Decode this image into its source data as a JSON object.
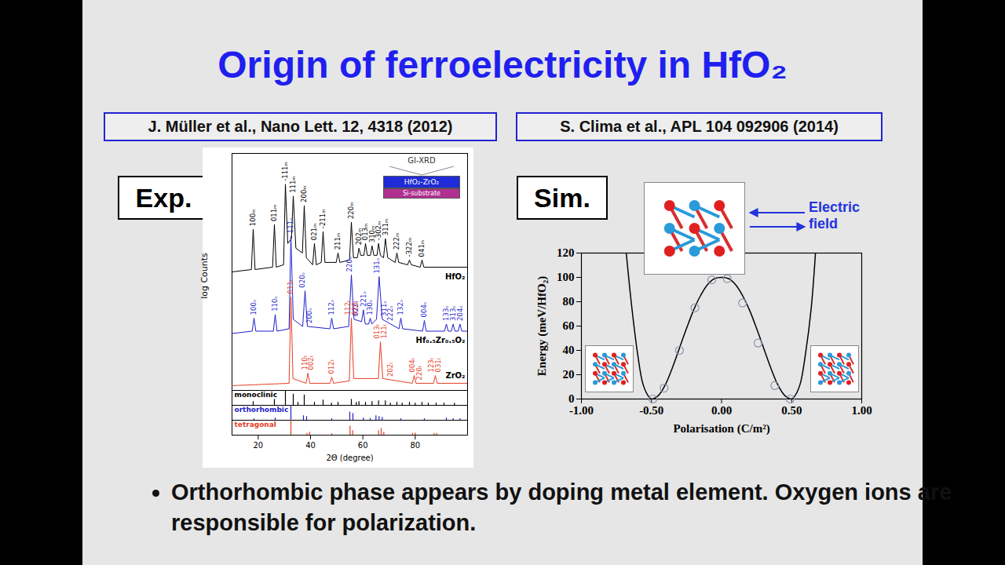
{
  "slide": {
    "title": "Origin of ferroelectricity in HfO₂",
    "references": [
      "J. Müller et al., Nano Lett. 12, 4318 (2012)",
      "S. Clima et al., APL 104 092906 (2014)"
    ],
    "panel_labels": [
      "Exp.",
      "Sim."
    ],
    "bullet": "Orthorhombic phase appears by doping metal element. Oxygen ions are responsible for polarization."
  },
  "chart_data": [
    {
      "type": "line",
      "ylabel": "log Counts",
      "xlim": [
        10,
        100
      ],
      "ylim": [
        0,
        100
      ],
      "tick_labels": false,
      "inset": {
        "title": "GI-XRD",
        "layers": [
          {
            "label": "HfO₂-ZrO₂",
            "color": "#1f2bd6"
          },
          {
            "label": "Si-substrate",
            "color": "#b0308f"
          }
        ]
      },
      "series": [
        {
          "name": "HfO₂",
          "color": "#000000",
          "x": [
            10,
            17.4,
            18.1,
            18.8,
            25.5,
            26.2,
            26.9,
            29.7,
            30.4,
            31.3,
            32.7,
            33.4,
            34.4,
            36.9,
            37.6,
            38.4,
            40.8,
            41.5,
            42.2,
            44.1,
            44.8,
            45.5,
            49.8,
            50.5,
            51.2,
            54.9,
            55.6,
            56.4,
            57.9,
            58.5,
            59.2,
            60.4,
            61.0,
            61.7,
            62.9,
            63.5,
            64.2,
            65.4,
            66.0,
            66.7,
            67.9,
            68.6,
            69.5,
            72.3,
            73.0,
            73.7,
            77.1,
            77.8,
            78.5,
            81.9,
            82.6,
            83.3,
            100
          ],
          "values": [
            50,
            51,
            68,
            51,
            52,
            70,
            52,
            53,
            87,
            62,
            64,
            82,
            60,
            58,
            78,
            56,
            53,
            62,
            53,
            54,
            67,
            54,
            54,
            58,
            54,
            55,
            71,
            56,
            56,
            60,
            57,
            57,
            62,
            57,
            57,
            61,
            57,
            57,
            62,
            57,
            56,
            64,
            56,
            54,
            58,
            54,
            53,
            55,
            53,
            52,
            55,
            52,
            52
          ],
          "annotations": [
            {
              "x": 18.1,
              "label": "100ₘ"
            },
            {
              "x": 26.2,
              "label": "011ₘ"
            },
            {
              "x": 30.4,
              "label": "-111ₘ"
            },
            {
              "x": 33.4,
              "label": "111ₘ"
            },
            {
              "x": 37.6,
              "label": "200ₘ"
            },
            {
              "x": 41.5,
              "label": "021ₘ"
            },
            {
              "x": 44.8,
              "label": "-211ₘ"
            },
            {
              "x": 50.5,
              "label": "211ₘ"
            },
            {
              "x": 55.6,
              "label": "220ₘ"
            },
            {
              "x": 58.5,
              "label": "202ₘ"
            },
            {
              "x": 61.0,
              "label": "013ₘ"
            },
            {
              "x": 63.5,
              "label": "310ₘ"
            },
            {
              "x": 66.0,
              "label": "-302ₘ"
            },
            {
              "x": 68.6,
              "label": "311ₘ"
            },
            {
              "x": 73.0,
              "label": "222ₘ"
            },
            {
              "x": 77.8,
              "label": "-322ₘ"
            },
            {
              "x": 82.6,
              "label": "041ₘ"
            }
          ]
        },
        {
          "name": "Hf₀.₅Zr₀.₅O₂",
          "color": "#1f1fcc",
          "x": [
            10,
            17.7,
            18.4,
            19.1,
            25.8,
            26.5,
            27.2,
            31.8,
            32.5,
            33.4,
            37.0,
            37.9,
            38.8,
            47.4,
            48.1,
            48.8,
            54.6,
            55.6,
            56.6,
            59.5,
            60.2,
            60.9,
            62.2,
            62.8,
            63.4,
            65.2,
            66.2,
            67.4,
            73.8,
            74.5,
            75.2,
            82.8,
            83.5,
            84.2,
            91.2,
            91.9,
            92.6,
            93.8,
            94.5,
            95.2,
            96.4,
            97.1,
            97.8,
            100
          ],
          "values": [
            24,
            25,
            30.5,
            25,
            25,
            32,
            25,
            26,
            65,
            30,
            27,
            42,
            27,
            26,
            30.5,
            26,
            27,
            48.7,
            30,
            29,
            34,
            28,
            28,
            30.5,
            28,
            30,
            48,
            30,
            26,
            30.5,
            26,
            25,
            29.5,
            25,
            25,
            28,
            25,
            25,
            28,
            25,
            25,
            28,
            25,
            25
          ],
          "annotations": [
            {
              "x": 18.4,
              "label": "100ₒ"
            },
            {
              "x": 26.5,
              "label": "110ₒ"
            },
            {
              "x": 32.5,
              "label": "111ₒ"
            },
            {
              "x": 36.9,
              "label": "020ₒ"
            },
            {
              "x": 39.5,
              "label": "200ₒ"
            },
            {
              "x": 48.1,
              "label": "112ₒ"
            },
            {
              "x": 54.8,
              "label": "220ₒ"
            },
            {
              "x": 57.4,
              "label": "022ₒ"
            },
            {
              "x": 60.2,
              "label": "221ₒ"
            },
            {
              "x": 62.8,
              "label": "130ₒ"
            },
            {
              "x": 65.4,
              "label": "131ₒ"
            },
            {
              "x": 68.0,
              "label": "311ₒ"
            },
            {
              "x": 70.6,
              "label": "222ₒ"
            },
            {
              "x": 74.5,
              "label": "132ₒ"
            },
            {
              "x": 83.5,
              "label": "004ₒ"
            },
            {
              "x": 91.9,
              "label": "133ₒ"
            },
            {
              "x": 94.5,
              "label": "313ₒ"
            },
            {
              "x": 97.1,
              "label": "204ₒ"
            }
          ]
        },
        {
          "name": "ZrO₂",
          "color": "#e53e25",
          "x": [
            10,
            31.8,
            32.5,
            33.3,
            38.3,
            39.0,
            39.7,
            47.4,
            48.1,
            48.8,
            54.8,
            55.6,
            56.5,
            65.9,
            66.7,
            67.6,
            78.9,
            79.6,
            80.3,
            87.0,
            87.7,
            88.4,
            100
          ],
          "values": [
            2,
            3,
            39.4,
            5,
            3,
            7.3,
            3,
            3,
            5.6,
            3,
            4,
            30.5,
            5,
            5,
            20.5,
            5,
            3,
            6.3,
            3,
            3,
            6.3,
            3,
            3
          ],
          "annotations": [
            {
              "x": 32.5,
              "label": "011ₜ"
            },
            {
              "x": 37.7,
              "label": "110ₜ"
            },
            {
              "x": 40.3,
              "label": "002ₜ"
            },
            {
              "x": 48.1,
              "label": "012ₜ"
            },
            {
              "x": 54.3,
              "label": "112ₜ"
            },
            {
              "x": 56.9,
              "label": "020ₜ"
            },
            {
              "x": 65.4,
              "label": "013ₜ"
            },
            {
              "x": 68.0,
              "label": "121ₜ"
            },
            {
              "x": 70.6,
              "label": "202ₜ"
            },
            {
              "x": 78.9,
              "label": "004ₜ"
            },
            {
              "x": 81.5,
              "label": "220ₜ"
            },
            {
              "x": 86.2,
              "label": "123ₜ"
            },
            {
              "x": 88.9,
              "label": "031ₜ"
            }
          ]
        }
      ]
    },
    {
      "type": "stick",
      "xlabel": "2Θ (degree)",
      "xlim": [
        10,
        100
      ],
      "xticks": [
        20,
        40,
        60,
        80
      ],
      "ylim": [
        0,
        100
      ],
      "tick_labels": "x",
      "series": [
        {
          "name": "monoclinic",
          "color": "#000000",
          "x": [
            18.1,
            26.2,
            30.4,
            33.4,
            35.2,
            37.6,
            41.5,
            44.8,
            48.0,
            50.5,
            55.6,
            57.5,
            58.5,
            61.0,
            63.5,
            66.0,
            68.6,
            70.5,
            73.0,
            75.0,
            77.8,
            80.0,
            82.6,
            85.0,
            88.0,
            91.0,
            95.0
          ],
          "values": [
            25,
            40,
            100,
            75,
            20,
            70,
            20,
            35,
            15,
            20,
            40,
            20,
            25,
            20,
            25,
            30,
            30,
            15,
            20,
            15,
            20,
            15,
            20,
            15,
            15,
            15,
            15
          ]
        },
        {
          "name": "orthorhombic",
          "color": "#1f1fcc",
          "x": [
            18.4,
            26.5,
            32.5,
            37.3,
            38.5,
            48.1,
            55.0,
            56.2,
            60.2,
            62.8,
            65.0,
            66.2,
            67.4,
            74.5,
            83.5,
            91.9,
            94.5,
            97.1
          ],
          "values": [
            10,
            15,
            100,
            30,
            25,
            10,
            55,
            45,
            15,
            12,
            30,
            25,
            20,
            10,
            10,
            15,
            12,
            10
          ]
        },
        {
          "name": "tetragonal",
          "color": "#e53e25",
          "x": [
            32.5,
            38.6,
            39.6,
            48.1,
            55.1,
            56.1,
            66.0,
            67.0,
            68.0,
            79.0,
            80.0,
            87.2,
            88.2
          ],
          "values": [
            100,
            12,
            20,
            10,
            60,
            30,
            30,
            45,
            20,
            12,
            15,
            10,
            12
          ]
        }
      ]
    },
    {
      "type": "line",
      "xlabel": "Polarisation (C/m²)",
      "ylabel": "Energy (meV/HfO₂)",
      "xlim": [
        -1,
        1
      ],
      "xticks": [
        {
          "value": -1,
          "label": "-1.00"
        },
        {
          "value": -0.5,
          "label": "-0.50"
        },
        {
          "value": 0,
          "label": "0.00"
        },
        {
          "value": 0.5,
          "label": "0.50"
        },
        {
          "value": 1,
          "label": "1.00"
        }
      ],
      "ylim": [
        0,
        120
      ],
      "yticks": [
        0,
        20,
        40,
        60,
        80,
        100,
        120
      ],
      "annotation": "Electric field",
      "series": [
        {
          "type": "line",
          "color": "#000000",
          "x": [
            -0.68,
            -0.64,
            -0.6,
            -0.56,
            -0.52,
            -0.5,
            -0.45,
            -0.4,
            -0.35,
            -0.3,
            -0.25,
            -0.2,
            -0.15,
            -0.1,
            -0.05,
            0,
            0.05,
            0.1,
            0.15,
            0.2,
            0.25,
            0.3,
            0.35,
            0.4,
            0.45,
            0.5,
            0.52,
            0.56,
            0.6,
            0.64,
            0.67
          ],
          "values": [
            120,
            75,
            38,
            12,
            2,
            0,
            3,
            12,
            26,
            42,
            58,
            73,
            85,
            94,
            99,
            100,
            99,
            94,
            85,
            73,
            58,
            42,
            26,
            12,
            3,
            0,
            2,
            12,
            38,
            75,
            120
          ]
        },
        {
          "type": "scatter",
          "marker": "circle",
          "color": "#8a96aa",
          "x": [
            -0.49,
            -0.41,
            -0.3,
            -0.19,
            -0.07,
            0.04,
            0.15,
            0.26,
            0.38,
            0.49
          ],
          "values": [
            0,
            9,
            40,
            75,
            98,
            99,
            79,
            46,
            11,
            0
          ]
        }
      ]
    }
  ]
}
